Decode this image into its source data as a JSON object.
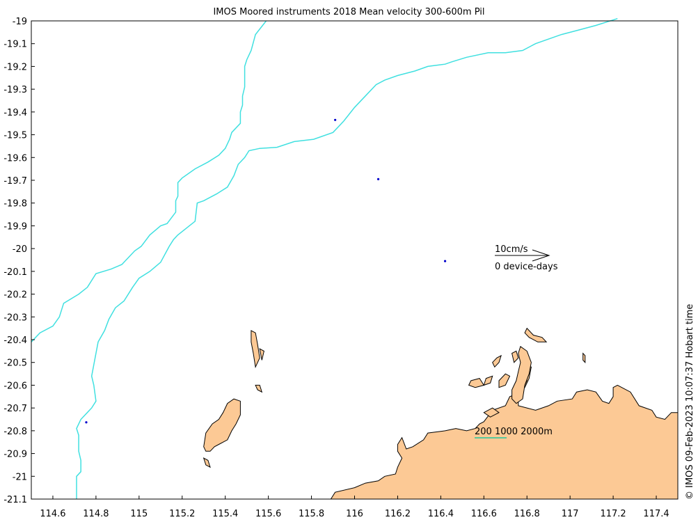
{
  "title": "IMOS Moored instruments 2018 Mean velocity 300-600m Pil",
  "side_text": "© IMOS 09-Feb-2023 10:07:37 Hobart time",
  "colors": {
    "land": "#fcc995",
    "coast": "#000000",
    "bathy": "#40e0e0",
    "mooring": "#0000cc",
    "scalebar": "#1ec8a0"
  },
  "legend": {
    "speed_label": "10cm/s",
    "count_label": "0 device-days"
  },
  "contour_legend": {
    "label": "200 1000 2000m"
  },
  "axes": {
    "lon_range": [
      114.5,
      117.5
    ],
    "lat_range": [
      -21.1,
      -19.0
    ],
    "x_ticks": [
      "114.6",
      "114.8",
      "115",
      "115.2",
      "115.4",
      "115.6",
      "115.8",
      "116",
      "116.2",
      "116.4",
      "116.6",
      "116.8",
      "117",
      "117.2",
      "117.4"
    ],
    "x_tick_values": [
      114.6,
      114.8,
      115.0,
      115.2,
      115.4,
      115.6,
      115.8,
      116.0,
      116.2,
      116.4,
      116.6,
      116.8,
      117.0,
      117.2,
      117.4
    ],
    "y_ticks": [
      "-19",
      "-19.1",
      "-19.2",
      "-19.3",
      "-19.4",
      "-19.5",
      "-19.6",
      "-19.7",
      "-19.8",
      "-19.9",
      "-20",
      "-20.1",
      "-20.2",
      "-20.3",
      "-20.4",
      "-20.5",
      "-20.6",
      "-20.7",
      "-20.8",
      "-20.9",
      "-21",
      "-21.1"
    ],
    "y_tick_values": [
      -19.0,
      -19.1,
      -19.2,
      -19.3,
      -19.4,
      -19.5,
      -19.6,
      -19.7,
      -19.8,
      -19.9,
      -20.0,
      -20.1,
      -20.2,
      -20.3,
      -20.4,
      -20.5,
      -20.6,
      -20.7,
      -20.8,
      -20.9,
      -21.0,
      -21.1
    ]
  },
  "moorings": [
    {
      "name": "mooring-1",
      "lon": 115.91,
      "lat": -19.435
    },
    {
      "name": "mooring-2",
      "lon": 116.11,
      "lat": -19.695
    },
    {
      "name": "mooring-3",
      "lon": 116.42,
      "lat": -20.055
    },
    {
      "name": "mooring-4",
      "lon": 114.755,
      "lat": -20.763
    }
  ],
  "isobaths": [
    {
      "name": "isobath-west",
      "points": [
        [
          114.5,
          -20.41
        ],
        [
          114.54,
          -20.37
        ],
        [
          114.6,
          -20.34
        ],
        [
          114.63,
          -20.3
        ],
        [
          114.65,
          -20.24
        ],
        [
          114.72,
          -20.2
        ],
        [
          114.76,
          -20.17
        ],
        [
          114.8,
          -20.11
        ],
        [
          114.87,
          -20.09
        ],
        [
          114.92,
          -20.07
        ],
        [
          114.98,
          -20.01
        ],
        [
          115.01,
          -19.99
        ],
        [
          115.05,
          -19.94
        ],
        [
          115.1,
          -19.9
        ],
        [
          115.13,
          -19.89
        ],
        [
          115.17,
          -19.84
        ],
        [
          115.17,
          -19.79
        ],
        [
          115.18,
          -19.77
        ],
        [
          115.18,
          -19.71
        ],
        [
          115.2,
          -19.69
        ],
        [
          115.26,
          -19.65
        ],
        [
          115.32,
          -19.62
        ],
        [
          115.37,
          -19.59
        ],
        [
          115.4,
          -19.56
        ],
        [
          115.42,
          -19.52
        ],
        [
          115.43,
          -19.49
        ],
        [
          115.47,
          -19.45
        ],
        [
          115.47,
          -19.4
        ],
        [
          115.48,
          -19.37
        ],
        [
          115.48,
          -19.33
        ],
        [
          115.49,
          -19.29
        ],
        [
          115.49,
          -19.2
        ],
        [
          115.5,
          -19.17
        ],
        [
          115.52,
          -19.13
        ],
        [
          115.54,
          -19.06
        ],
        [
          115.59,
          -19.0
        ]
      ]
    },
    {
      "name": "isobath-east",
      "points": [
        [
          114.71,
          -21.1
        ],
        [
          114.71,
          -21.0
        ],
        [
          114.73,
          -20.98
        ],
        [
          114.73,
          -20.93
        ],
        [
          114.72,
          -20.89
        ],
        [
          114.72,
          -20.82
        ],
        [
          114.71,
          -20.79
        ],
        [
          114.73,
          -20.75
        ],
        [
          114.78,
          -20.7
        ],
        [
          114.8,
          -20.67
        ],
        [
          114.79,
          -20.6
        ],
        [
          114.78,
          -20.56
        ],
        [
          114.79,
          -20.51
        ],
        [
          114.8,
          -20.46
        ],
        [
          114.81,
          -20.41
        ],
        [
          114.84,
          -20.36
        ],
        [
          114.86,
          -20.31
        ],
        [
          114.89,
          -20.26
        ],
        [
          114.93,
          -20.23
        ],
        [
          114.97,
          -20.17
        ],
        [
          115.0,
          -20.13
        ],
        [
          115.05,
          -20.1
        ],
        [
          115.1,
          -20.06
        ],
        [
          115.14,
          -19.99
        ],
        [
          115.16,
          -19.96
        ],
        [
          115.18,
          -19.94
        ],
        [
          115.22,
          -19.91
        ],
        [
          115.26,
          -19.88
        ],
        [
          115.27,
          -19.8
        ],
        [
          115.3,
          -19.79
        ],
        [
          115.36,
          -19.76
        ],
        [
          115.41,
          -19.73
        ],
        [
          115.44,
          -19.68
        ],
        [
          115.46,
          -19.63
        ],
        [
          115.49,
          -19.6
        ],
        [
          115.51,
          -19.57
        ],
        [
          115.56,
          -19.56
        ],
        [
          115.64,
          -19.555
        ],
        [
          115.72,
          -19.53
        ],
        [
          115.81,
          -19.52
        ],
        [
          115.9,
          -19.49
        ],
        [
          115.95,
          -19.44
        ],
        [
          116.0,
          -19.38
        ],
        [
          116.06,
          -19.32
        ],
        [
          116.1,
          -19.28
        ],
        [
          116.14,
          -19.26
        ],
        [
          116.2,
          -19.24
        ],
        [
          116.28,
          -19.22
        ],
        [
          116.34,
          -19.2
        ],
        [
          116.42,
          -19.19
        ],
        [
          116.45,
          -19.18
        ],
        [
          116.52,
          -19.16
        ],
        [
          116.62,
          -19.14
        ],
        [
          116.7,
          -19.14
        ],
        [
          116.78,
          -19.13
        ],
        [
          116.84,
          -19.1
        ],
        [
          116.96,
          -19.06
        ],
        [
          117.04,
          -19.04
        ],
        [
          117.12,
          -19.02
        ],
        [
          117.22,
          -18.99
        ]
      ]
    }
  ],
  "land": [
    {
      "name": "mainland",
      "points": [
        [
          115.89,
          -21.1
        ],
        [
          115.91,
          -21.07
        ],
        [
          116.0,
          -21.05
        ],
        [
          116.05,
          -21.03
        ],
        [
          116.11,
          -21.02
        ],
        [
          116.14,
          -21.0
        ],
        [
          116.19,
          -20.99
        ],
        [
          116.2,
          -20.96
        ],
        [
          116.22,
          -20.92
        ],
        [
          116.2,
          -20.89
        ],
        [
          116.2,
          -20.86
        ],
        [
          116.22,
          -20.83
        ],
        [
          116.24,
          -20.88
        ],
        [
          116.27,
          -20.87
        ],
        [
          116.32,
          -20.84
        ],
        [
          116.34,
          -20.81
        ],
        [
          116.42,
          -20.8
        ],
        [
          116.47,
          -20.79
        ],
        [
          116.52,
          -20.8
        ],
        [
          116.56,
          -20.79
        ],
        [
          116.58,
          -20.77
        ],
        [
          116.6,
          -20.76
        ],
        [
          116.64,
          -20.71
        ],
        [
          116.7,
          -20.69
        ],
        [
          116.72,
          -20.65
        ],
        [
          116.75,
          -20.64
        ],
        [
          116.79,
          -20.61
        ],
        [
          116.81,
          -20.57
        ],
        [
          116.82,
          -20.52
        ],
        [
          116.8,
          -20.51
        ],
        [
          116.8,
          -20.58
        ],
        [
          116.77,
          -20.64
        ],
        [
          116.76,
          -20.67
        ],
        [
          116.76,
          -20.69
        ],
        [
          116.8,
          -20.7
        ],
        [
          116.84,
          -20.71
        ],
        [
          116.9,
          -20.69
        ],
        [
          116.94,
          -20.67
        ],
        [
          117.01,
          -20.66
        ],
        [
          117.03,
          -20.63
        ],
        [
          117.08,
          -20.62
        ],
        [
          117.12,
          -20.63
        ],
        [
          117.15,
          -20.67
        ],
        [
          117.18,
          -20.68
        ],
        [
          117.2,
          -20.65
        ],
        [
          117.2,
          -20.61
        ],
        [
          117.22,
          -20.6
        ],
        [
          117.28,
          -20.63
        ],
        [
          117.32,
          -20.69
        ],
        [
          117.38,
          -20.71
        ],
        [
          117.4,
          -20.74
        ],
        [
          117.44,
          -20.75
        ],
        [
          117.47,
          -20.72
        ],
        [
          117.5,
          -20.72
        ],
        [
          117.5,
          -21.1
        ]
      ]
    },
    {
      "name": "barrow-island",
      "points": [
        [
          115.44,
          -20.66
        ],
        [
          115.47,
          -20.67
        ],
        [
          115.47,
          -20.73
        ],
        [
          115.45,
          -20.77
        ],
        [
          115.43,
          -20.8
        ],
        [
          115.41,
          -20.84
        ],
        [
          115.37,
          -20.86
        ],
        [
          115.35,
          -20.87
        ],
        [
          115.33,
          -20.89
        ],
        [
          115.31,
          -20.89
        ],
        [
          115.3,
          -20.87
        ],
        [
          115.31,
          -20.81
        ],
        [
          115.34,
          -20.77
        ],
        [
          115.37,
          -20.75
        ],
        [
          115.39,
          -20.72
        ],
        [
          115.41,
          -20.68
        ]
      ]
    },
    {
      "name": "burrup-peninsula",
      "points": [
        [
          116.77,
          -20.43
        ],
        [
          116.8,
          -20.45
        ],
        [
          116.82,
          -20.5
        ],
        [
          116.81,
          -20.55
        ],
        [
          116.79,
          -20.6
        ],
        [
          116.78,
          -20.66
        ],
        [
          116.75,
          -20.68
        ],
        [
          116.73,
          -20.66
        ],
        [
          116.73,
          -20.62
        ],
        [
          116.75,
          -20.58
        ],
        [
          116.76,
          -20.54
        ],
        [
          116.77,
          -20.5
        ],
        [
          116.76,
          -20.46
        ]
      ]
    },
    {
      "name": "legendre-island",
      "points": [
        [
          116.8,
          -20.35
        ],
        [
          116.83,
          -20.38
        ],
        [
          116.87,
          -20.39
        ],
        [
          116.89,
          -20.41
        ],
        [
          116.85,
          -20.41
        ],
        [
          116.81,
          -20.39
        ],
        [
          116.79,
          -20.37
        ]
      ]
    },
    {
      "name": "dampier-island-a",
      "points": [
        [
          116.64,
          -20.5
        ],
        [
          116.66,
          -20.48
        ],
        [
          116.68,
          -20.47
        ],
        [
          116.67,
          -20.5
        ],
        [
          116.65,
          -20.52
        ]
      ]
    },
    {
      "name": "dampier-island-b",
      "points": [
        [
          116.54,
          -20.58
        ],
        [
          116.58,
          -20.57
        ],
        [
          116.6,
          -20.6
        ],
        [
          116.56,
          -20.61
        ],
        [
          116.53,
          -20.6
        ]
      ]
    },
    {
      "name": "dampier-island-c",
      "points": [
        [
          116.61,
          -20.57
        ],
        [
          116.64,
          -20.56
        ],
        [
          116.63,
          -20.59
        ],
        [
          116.6,
          -20.6
        ]
      ]
    },
    {
      "name": "dampier-island-d",
      "points": [
        [
          116.67,
          -20.58
        ],
        [
          116.7,
          -20.55
        ],
        [
          116.72,
          -20.56
        ],
        [
          116.7,
          -20.6
        ],
        [
          116.67,
          -20.61
        ]
      ]
    },
    {
      "name": "dampier-island-e",
      "points": [
        [
          116.73,
          -20.46
        ],
        [
          116.75,
          -20.45
        ],
        [
          116.76,
          -20.48
        ],
        [
          116.74,
          -20.5
        ]
      ]
    },
    {
      "name": "dampier-island-f",
      "points": [
        [
          116.6,
          -20.72
        ],
        [
          116.64,
          -20.7
        ],
        [
          116.67,
          -20.72
        ],
        [
          116.63,
          -20.74
        ]
      ]
    },
    {
      "name": "rosemary-island",
      "points": [
        [
          117.06,
          -20.46
        ],
        [
          117.07,
          -20.47
        ],
        [
          117.07,
          -20.5
        ],
        [
          117.06,
          -20.49
        ]
      ]
    },
    {
      "name": "montebello-island-a",
      "points": [
        [
          115.52,
          -20.36
        ],
        [
          115.54,
          -20.37
        ],
        [
          115.55,
          -20.42
        ],
        [
          115.56,
          -20.48
        ],
        [
          115.54,
          -20.52
        ],
        [
          115.53,
          -20.46
        ],
        [
          115.52,
          -20.41
        ]
      ]
    },
    {
      "name": "montebello-island-b",
      "points": [
        [
          115.56,
          -20.44
        ],
        [
          115.58,
          -20.45
        ],
        [
          115.57,
          -20.49
        ]
      ]
    },
    {
      "name": "montebello-island-c",
      "points": [
        [
          115.54,
          -20.6
        ],
        [
          115.56,
          -20.6
        ],
        [
          115.57,
          -20.63
        ],
        [
          115.55,
          -20.62
        ]
      ]
    },
    {
      "name": "barrow-islet",
      "points": [
        [
          115.3,
          -20.92
        ],
        [
          115.32,
          -20.93
        ],
        [
          115.33,
          -20.96
        ],
        [
          115.31,
          -20.95
        ]
      ]
    }
  ]
}
